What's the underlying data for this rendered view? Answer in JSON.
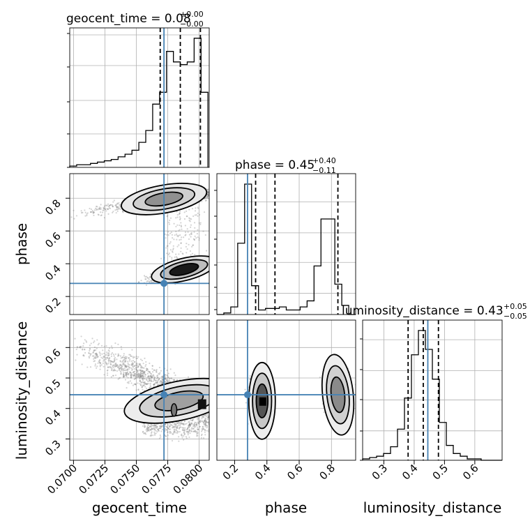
{
  "titles": {
    "geocent_time": {
      "main": "geocent_time = 0.08",
      "sup": "+0.00",
      "sub": "−0.00"
    },
    "phase": {
      "main": "phase = 0.45",
      "sup": "+0.40",
      "sub": "−0.11"
    },
    "luminosity_distance": {
      "main": "luminosity_distance = 0.43",
      "sup": "+0.05",
      "sub": "−0.05"
    }
  },
  "labels": {
    "x_geocent": "geocent_time",
    "x_phase": "phase",
    "x_lumdist": "luminosity_distance",
    "y_phase": "phase",
    "y_lumdist": "luminosity_distance"
  },
  "colors": {
    "truth": "#4682b4",
    "contour": "#000000",
    "hist": "#000000",
    "grid": "#b0b0b0",
    "scatter": "#808080"
  },
  "chart_data": {
    "type": "corner",
    "parameters": [
      "geocent_time",
      "phase",
      "luminosity_distance"
    ],
    "truths": {
      "geocent_time": 0.0772,
      "phase": 0.28,
      "luminosity_distance": 0.445
    },
    "ranges": {
      "geocent_time": [
        0.0697,
        0.0808
      ],
      "phase": [
        0.09,
        0.95
      ],
      "luminosity_distance": [
        0.23,
        0.69
      ]
    },
    "ticks": {
      "geocent_time": [
        "0.0700",
        "0.0725",
        "0.0750",
        "0.0775",
        "0.0800"
      ],
      "phase_x": [
        "0.2",
        "0.4",
        "0.6",
        "0.8"
      ],
      "phase_y": [
        "0.2",
        "0.4",
        "0.6",
        "0.8"
      ],
      "luminosity_distance_x": [
        "0.3",
        "0.4",
        "0.5",
        "0.6"
      ],
      "luminosity_distance_y": [
        "0.3",
        "0.4",
        "0.5",
        "0.6"
      ]
    },
    "histograms": {
      "geocent_time": {
        "edges_start": 0.0697,
        "edge_step": 0.00055,
        "counts": [
          1,
          2,
          2,
          3,
          4,
          5,
          6,
          8,
          10,
          13,
          19,
          28,
          48,
          57,
          88,
          80,
          78,
          80,
          98,
          57
        ],
        "quantiles": [
          0.0769,
          0.0785,
          0.0801
        ]
      },
      "phase": {
        "edges_start": 0.09,
        "edge_step": 0.043,
        "counts": [
          0,
          1,
          5,
          47,
          86,
          19,
          3,
          4,
          4,
          5,
          3,
          3,
          5,
          9,
          32,
          63,
          63,
          20,
          6,
          0
        ],
        "quantiles": [
          0.33,
          0.45,
          0.84
        ]
      },
      "luminosity_distance": {
        "edges_start": 0.23,
        "edge_step": 0.023,
        "counts": [
          1,
          2,
          3,
          5,
          10,
          23,
          46,
          78,
          96,
          82,
          60,
          28,
          11,
          5,
          3,
          1,
          1,
          0,
          0,
          0
        ],
        "quantiles": [
          0.38,
          0.43,
          0.48
        ]
      }
    },
    "scatter_panels": [
      "phase_vs_geocent_time",
      "luminosity_distance_vs_geocent_time",
      "luminosity_distance_vs_phase"
    ]
  }
}
